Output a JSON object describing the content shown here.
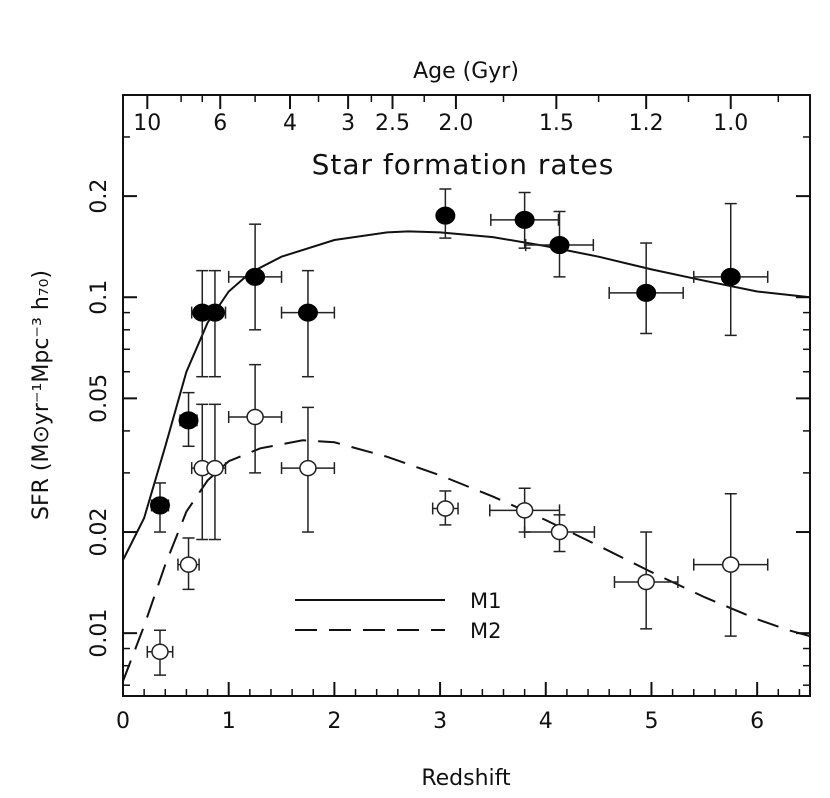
{
  "chart_data": {
    "type": "scatter",
    "title": "Star formation rates",
    "top_axis_label": "Age (Gyr)",
    "xlabel": "Redshift",
    "ylabel": "SFR (M⊙yr⁻¹Mpc⁻³ h₇₀)",
    "xlim": [
      0,
      6.5
    ],
    "ylim": [
      0.0065,
      0.4
    ],
    "yscale": "log",
    "x_ticks": [
      "0",
      "1",
      "2",
      "3",
      "4",
      "5",
      "6"
    ],
    "y_ticks": [
      {
        "value": 0.01,
        "label": "0.01"
      },
      {
        "value": 0.02,
        "label": "0.02"
      },
      {
        "value": 0.05,
        "label": "0.05"
      },
      {
        "value": 0.1,
        "label": "0.1"
      },
      {
        "value": 0.2,
        "label": "0.2"
      }
    ],
    "top_ticks": [
      {
        "label": "10",
        "z": 0.23
      },
      {
        "label": "6",
        "z": 0.92
      },
      {
        "label": "4",
        "z": 1.58
      },
      {
        "label": "3",
        "z": 2.13
      },
      {
        "label": "2.5",
        "z": 2.55
      },
      {
        "label": "2.0",
        "z": 3.15
      },
      {
        "label": "1.5",
        "z": 4.1
      },
      {
        "label": "1.2",
        "z": 4.95
      },
      {
        "label": "1.0",
        "z": 5.75
      }
    ],
    "series": [
      {
        "name": "filled",
        "marker": "filled-circle",
        "points": [
          {
            "x": 0.35,
            "y": 0.024,
            "xerr": 0.08,
            "ylo": 0.02,
            "yhi": 0.028
          },
          {
            "x": 0.62,
            "y": 0.043,
            "xerr": 0.08,
            "ylo": 0.036,
            "yhi": 0.052
          },
          {
            "x": 0.75,
            "y": 0.09,
            "xerr": 0.1,
            "ylo": 0.058,
            "yhi": 0.12
          },
          {
            "x": 0.87,
            "y": 0.09,
            "xerr": 0.1,
            "ylo": 0.058,
            "yhi": 0.12
          },
          {
            "x": 1.25,
            "y": 0.115,
            "xerr": 0.25,
            "ylo": 0.08,
            "yhi": 0.165
          },
          {
            "x": 1.75,
            "y": 0.09,
            "xerr": 0.25,
            "ylo": 0.058,
            "yhi": 0.12
          },
          {
            "x": 3.05,
            "y": 0.175,
            "xerr": 0.06,
            "ylo": 0.15,
            "yhi": 0.21
          },
          {
            "x": 3.8,
            "y": 0.17,
            "xerr": 0.32,
            "ylo": 0.14,
            "yhi": 0.205
          },
          {
            "x": 4.13,
            "y": 0.143,
            "xerr": 0.32,
            "ylo": 0.115,
            "yhi": 0.18
          },
          {
            "x": 4.95,
            "y": 0.103,
            "xerr": 0.35,
            "ylo": 0.078,
            "yhi": 0.145
          },
          {
            "x": 5.75,
            "y": 0.115,
            "xerr": 0.35,
            "ylo": 0.077,
            "yhi": 0.19
          }
        ]
      },
      {
        "name": "open",
        "marker": "open-circle",
        "points": [
          {
            "x": 0.35,
            "y": 0.0088,
            "xerr": 0.12,
            "ylo": 0.0075,
            "yhi": 0.0102
          },
          {
            "x": 0.62,
            "y": 0.016,
            "xerr": 0.1,
            "ylo": 0.0135,
            "yhi": 0.0192
          },
          {
            "x": 0.75,
            "y": 0.031,
            "xerr": 0.1,
            "ylo": 0.019,
            "yhi": 0.048
          },
          {
            "x": 0.87,
            "y": 0.031,
            "xerr": 0.1,
            "ylo": 0.019,
            "yhi": 0.048
          },
          {
            "x": 1.25,
            "y": 0.044,
            "xerr": 0.25,
            "ylo": 0.03,
            "yhi": 0.063
          },
          {
            "x": 1.75,
            "y": 0.031,
            "xerr": 0.25,
            "ylo": 0.02,
            "yhi": 0.047
          },
          {
            "x": 3.05,
            "y": 0.0235,
            "xerr": 0.12,
            "ylo": 0.021,
            "yhi": 0.0265
          },
          {
            "x": 3.8,
            "y": 0.0232,
            "xerr": 0.33,
            "ylo": 0.02,
            "yhi": 0.027
          },
          {
            "x": 4.13,
            "y": 0.02,
            "xerr": 0.33,
            "ylo": 0.0175,
            "yhi": 0.0225
          },
          {
            "x": 4.95,
            "y": 0.0142,
            "xerr": 0.3,
            "ylo": 0.0103,
            "yhi": 0.02
          },
          {
            "x": 5.75,
            "y": 0.016,
            "xerr": 0.35,
            "ylo": 0.0098,
            "yhi": 0.026
          }
        ]
      }
    ],
    "curves": [
      {
        "name": "M1",
        "style": "solid",
        "points": [
          [
            0,
            0.0165
          ],
          [
            0.2,
            0.022
          ],
          [
            0.4,
            0.036
          ],
          [
            0.6,
            0.06
          ],
          [
            0.8,
            0.084
          ],
          [
            1.0,
            0.104
          ],
          [
            1.2,
            0.118
          ],
          [
            1.5,
            0.132
          ],
          [
            2.0,
            0.148
          ],
          [
            2.5,
            0.156
          ],
          [
            2.7,
            0.157
          ],
          [
            3.0,
            0.156
          ],
          [
            3.5,
            0.151
          ],
          [
            4.0,
            0.142
          ],
          [
            4.5,
            0.132
          ],
          [
            5.0,
            0.121
          ],
          [
            5.5,
            0.112
          ],
          [
            6.0,
            0.104
          ],
          [
            6.5,
            0.1
          ]
        ]
      },
      {
        "name": "M2",
        "style": "dashed",
        "points": [
          [
            0,
            0.0072
          ],
          [
            0.2,
            0.0105
          ],
          [
            0.4,
            0.016
          ],
          [
            0.6,
            0.023
          ],
          [
            0.8,
            0.0285
          ],
          [
            1.0,
            0.0325
          ],
          [
            1.3,
            0.0355
          ],
          [
            1.7,
            0.0375
          ],
          [
            2.0,
            0.037
          ],
          [
            2.5,
            0.0335
          ],
          [
            3.0,
            0.0295
          ],
          [
            3.5,
            0.0255
          ],
          [
            4.0,
            0.0217
          ],
          [
            4.5,
            0.0182
          ],
          [
            5.0,
            0.0152
          ],
          [
            5.5,
            0.0128
          ],
          [
            6.0,
            0.011
          ],
          [
            6.3,
            0.0102
          ],
          [
            6.5,
            0.0098
          ]
        ]
      }
    ],
    "legend": {
      "placement": "lower-center",
      "entries": [
        {
          "label": "M1",
          "style": "solid"
        },
        {
          "label": "M2",
          "style": "dashed"
        }
      ]
    }
  }
}
